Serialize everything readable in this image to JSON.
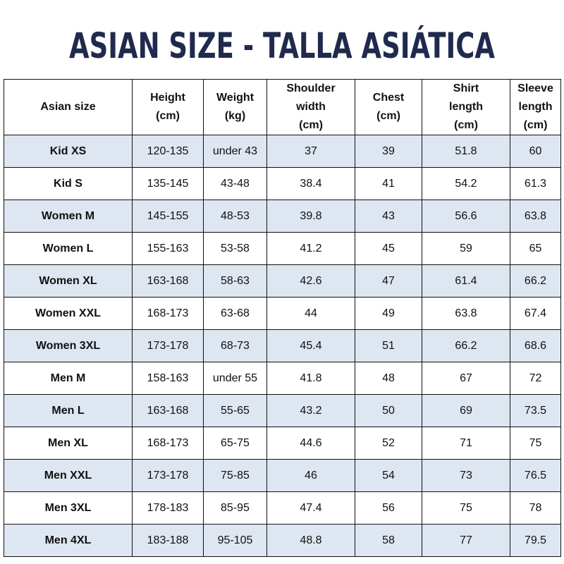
{
  "title": "ASIAN SIZE - TALLA ASIÁTICA",
  "table": {
    "header": [
      [
        "Asian size"
      ],
      [
        "Height",
        "(cm)"
      ],
      [
        "Weight",
        "(kg)"
      ],
      [
        "Shoulder",
        "width",
        "(cm)"
      ],
      [
        "Chest",
        "(cm)"
      ],
      [
        "Shirt",
        "length",
        "(cm)"
      ],
      [
        "Sleeve",
        "length",
        "(cm)"
      ]
    ],
    "rows": [
      [
        "Kid XS",
        "120-135",
        "under 43",
        "37",
        "39",
        "51.8",
        "60"
      ],
      [
        "Kid S",
        "135-145",
        "43-48",
        "38.4",
        "41",
        "54.2",
        "61.3"
      ],
      [
        "Women M",
        "145-155",
        "48-53",
        "39.8",
        "43",
        "56.6",
        "63.8"
      ],
      [
        "Women L",
        "155-163",
        "53-58",
        "41.2",
        "45",
        "59",
        "65"
      ],
      [
        "Women XL",
        "163-168",
        "58-63",
        "42.6",
        "47",
        "61.4",
        "66.2"
      ],
      [
        "Women XXL",
        "168-173",
        "63-68",
        "44",
        "49",
        "63.8",
        "67.4"
      ],
      [
        "Women 3XL",
        "173-178",
        "68-73",
        "45.4",
        "51",
        "66.2",
        "68.6"
      ],
      [
        "Men M",
        "158-163",
        "under 55",
        "41.8",
        "48",
        "67",
        "72"
      ],
      [
        "Men L",
        "163-168",
        "55-65",
        "43.2",
        "50",
        "69",
        "73.5"
      ],
      [
        "Men XL",
        "168-173",
        "65-75",
        "44.6",
        "52",
        "71",
        "75"
      ],
      [
        "Men XXL",
        "173-178",
        "75-85",
        "46",
        "54",
        "73",
        "76.5"
      ],
      [
        "Men 3XL",
        "178-183",
        "85-95",
        "47.4",
        "56",
        "75",
        "78"
      ],
      [
        "Men 4XL",
        "183-188",
        "95-105",
        "48.8",
        "58",
        "77",
        "79.5"
      ]
    ]
  }
}
